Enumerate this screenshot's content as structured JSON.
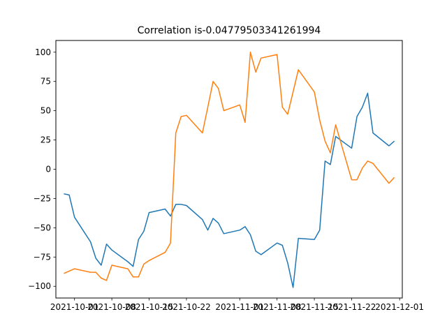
{
  "chart_data": {
    "type": "line",
    "title": "Correlation is-0.04779503341261994",
    "xlabel": "",
    "ylabel": "",
    "ylim": [
      -110,
      110
    ],
    "grid": false,
    "x_tick_labels": [
      "2021-10-01",
      "2021-10-08",
      "2021-10-15",
      "2021-10-22",
      "2021-11-01",
      "2021-11-08",
      "2021-11-15",
      "2021-11-22",
      "2021-12-01"
    ],
    "y_ticks": [
      -100,
      -75,
      -50,
      -25,
      0,
      25,
      50,
      75,
      100
    ],
    "y_tick_labels": [
      "−100",
      "−75",
      "−50",
      "−25",
      "0",
      "25",
      "50",
      "75",
      "100"
    ],
    "series": [
      {
        "color": "#1f77b4",
        "points": [
          [
            "2021-09-29",
            -21
          ],
          [
            "2021-09-30",
            -22
          ],
          [
            "2021-10-01",
            -41
          ],
          [
            "2021-10-04",
            -62
          ],
          [
            "2021-10-05",
            -76
          ],
          [
            "2021-10-06",
            -82
          ],
          [
            "2021-10-07",
            -64
          ],
          [
            "2021-10-08",
            -69
          ],
          [
            "2021-10-11",
            -79
          ],
          [
            "2021-10-12",
            -83
          ],
          [
            "2021-10-13",
            -60
          ],
          [
            "2021-10-14",
            -53
          ],
          [
            "2021-10-15",
            -37
          ],
          [
            "2021-10-18",
            -34
          ],
          [
            "2021-10-19",
            -40
          ],
          [
            "2021-10-20",
            -30
          ],
          [
            "2021-10-21",
            -30
          ],
          [
            "2021-10-22",
            -31
          ],
          [
            "2021-10-25",
            -43
          ],
          [
            "2021-10-26",
            -52
          ],
          [
            "2021-10-27",
            -42
          ],
          [
            "2021-10-28",
            -46
          ],
          [
            "2021-10-29",
            -55
          ],
          [
            "2021-11-01",
            -52
          ],
          [
            "2021-11-02",
            -49
          ],
          [
            "2021-11-03",
            -56
          ],
          [
            "2021-11-04",
            -70
          ],
          [
            "2021-11-05",
            -73
          ],
          [
            "2021-11-08",
            -63
          ],
          [
            "2021-11-09",
            -65
          ],
          [
            "2021-11-10",
            -80
          ],
          [
            "2021-11-11",
            -101
          ],
          [
            "2021-11-12",
            -59
          ],
          [
            "2021-11-15",
            -60
          ],
          [
            "2021-11-16",
            -52
          ],
          [
            "2021-11-17",
            7
          ],
          [
            "2021-11-18",
            4
          ],
          [
            "2021-11-19",
            28
          ],
          [
            "2021-11-22",
            18
          ],
          [
            "2021-11-23",
            45
          ],
          [
            "2021-11-24",
            53
          ],
          [
            "2021-11-25",
            65
          ],
          [
            "2021-11-26",
            31
          ],
          [
            "2021-11-29",
            20
          ],
          [
            "2021-11-30",
            24
          ]
        ]
      },
      {
        "color": "#ff7f0e",
        "points": [
          [
            "2021-09-29",
            -89
          ],
          [
            "2021-09-30",
            -87
          ],
          [
            "2021-10-01",
            -85
          ],
          [
            "2021-10-04",
            -88
          ],
          [
            "2021-10-05",
            -88
          ],
          [
            "2021-10-06",
            -93
          ],
          [
            "2021-10-07",
            -95
          ],
          [
            "2021-10-08",
            -82
          ],
          [
            "2021-10-11",
            -85
          ],
          [
            "2021-10-12",
            -92
          ],
          [
            "2021-10-13",
            -92
          ],
          [
            "2021-10-14",
            -81
          ],
          [
            "2021-10-15",
            -78
          ],
          [
            "2021-10-18",
            -71
          ],
          [
            "2021-10-19",
            -63
          ],
          [
            "2021-10-20",
            31
          ],
          [
            "2021-10-21",
            45
          ],
          [
            "2021-10-22",
            46
          ],
          [
            "2021-10-25",
            31
          ],
          [
            "2021-10-26",
            53
          ],
          [
            "2021-10-27",
            75
          ],
          [
            "2021-10-28",
            69
          ],
          [
            "2021-10-29",
            50
          ],
          [
            "2021-11-01",
            55
          ],
          [
            "2021-11-02",
            40
          ],
          [
            "2021-11-03",
            100
          ],
          [
            "2021-11-04",
            83
          ],
          [
            "2021-11-05",
            95
          ],
          [
            "2021-11-08",
            98
          ],
          [
            "2021-11-09",
            53
          ],
          [
            "2021-11-10",
            47
          ],
          [
            "2021-11-11",
            66
          ],
          [
            "2021-11-12",
            85
          ],
          [
            "2021-11-15",
            66
          ],
          [
            "2021-11-16",
            42
          ],
          [
            "2021-11-17",
            24
          ],
          [
            "2021-11-18",
            14
          ],
          [
            "2021-11-19",
            38
          ],
          [
            "2021-11-22",
            -9
          ],
          [
            "2021-11-23",
            -9
          ],
          [
            "2021-11-24",
            1
          ],
          [
            "2021-11-25",
            7
          ],
          [
            "2021-11-26",
            5
          ],
          [
            "2021-11-29",
            -12
          ],
          [
            "2021-11-30",
            -7
          ]
        ]
      }
    ]
  }
}
